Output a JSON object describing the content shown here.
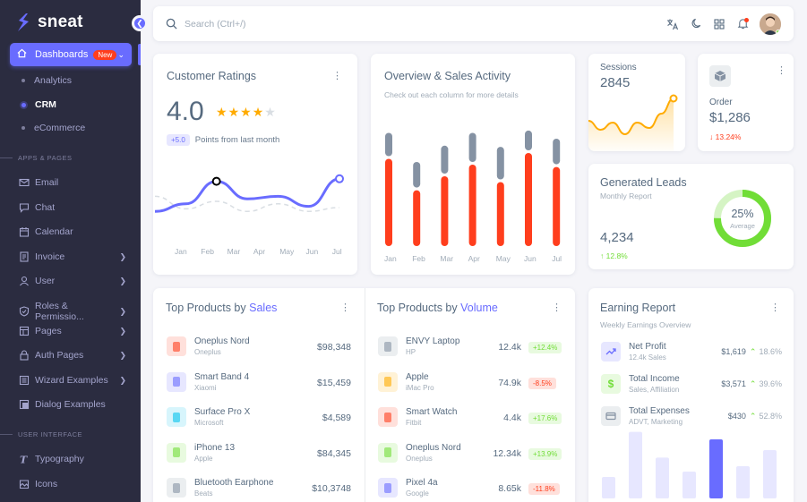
{
  "brand": {
    "name": "sneat"
  },
  "sidebar": {
    "dashboards": {
      "label": "Dashboards",
      "badge": "New"
    },
    "subitems": [
      {
        "label": "Analytics",
        "active": false
      },
      {
        "label": "CRM",
        "active": true
      },
      {
        "label": "eCommerce",
        "active": false
      }
    ],
    "section_apps": "APPS & PAGES",
    "section_ui": "USER INTERFACE",
    "items": [
      {
        "label": "Email",
        "icon": "mail-icon",
        "chevron": false
      },
      {
        "label": "Chat",
        "icon": "chat-icon",
        "chevron": false
      },
      {
        "label": "Calendar",
        "icon": "calendar-icon",
        "chevron": false
      },
      {
        "label": "Invoice",
        "icon": "invoice-icon",
        "chevron": true
      },
      {
        "label": "User",
        "icon": "user-icon",
        "chevron": true
      },
      {
        "label": "Roles & Permissio...",
        "icon": "shield-icon",
        "chevron": true
      },
      {
        "label": "Pages",
        "icon": "pages-icon",
        "chevron": true
      },
      {
        "label": "Auth Pages",
        "icon": "lock-icon",
        "chevron": true
      },
      {
        "label": "Wizard Examples",
        "icon": "wizard-icon",
        "chevron": true
      },
      {
        "label": "Dialog Examples",
        "icon": "dialog-icon",
        "chevron": false
      }
    ],
    "ui_items": [
      {
        "label": "Typography",
        "icon": "typography-icon"
      },
      {
        "label": "Icons",
        "icon": "icons-icon"
      }
    ]
  },
  "search": {
    "placeholder": "Search (Ctrl+/)"
  },
  "ratings": {
    "title": "Customer Ratings",
    "score": "4.0",
    "stars_filled": 4,
    "stars_total": 5,
    "badge": "+5.0",
    "badge_text": "Points from last month",
    "months": [
      "Jan",
      "Feb",
      "Mar",
      "Apr",
      "May",
      "Jun",
      "Jul"
    ]
  },
  "overview": {
    "title": "Overview & Sales Activity",
    "subtitle": "Check out each column for more details",
    "months": [
      "Jan",
      "Feb",
      "Mar",
      "Apr",
      "May",
      "Jun",
      "Jul"
    ]
  },
  "sessions": {
    "title": "Sessions",
    "value": "2845"
  },
  "order": {
    "title": "Order",
    "value": "$1,286",
    "change": "13.24%"
  },
  "leads": {
    "title": "Generated Leads",
    "subtitle": "Monthly Report",
    "value": "4,234",
    "change": "12.8%",
    "donut_pct": "25%",
    "donut_label": "Average",
    "donut_fraction": 0.25
  },
  "top_sales": {
    "title_prefix": "Top Products by",
    "title_accent": "Sales",
    "rows": [
      {
        "name": "Oneplus Nord",
        "brand": "Oneplus",
        "value": "$98,348",
        "bg": "#ffe0db",
        "fg": "#ff3e1d"
      },
      {
        "name": "Smart Band 4",
        "brand": "Xiaomi",
        "value": "$15,459",
        "bg": "#e7e7ff",
        "fg": "#696cff"
      },
      {
        "name": "Surface Pro X",
        "brand": "Microsoft",
        "value": "$4,589",
        "bg": "#d7f5fc",
        "fg": "#03c3ec"
      },
      {
        "name": "iPhone 13",
        "brand": "Apple",
        "value": "$84,345",
        "bg": "#e8fadf",
        "fg": "#71dd37"
      },
      {
        "name": "Bluetooth Earphone",
        "brand": "Beats",
        "value": "$10,3748",
        "bg": "#ebeef0",
        "fg": "#8592a3"
      }
    ]
  },
  "top_volume": {
    "title_prefix": "Top Products by",
    "title_accent": "Volume",
    "rows": [
      {
        "name": "ENVY Laptop",
        "brand": "HP",
        "value": "12.4k",
        "chip": "+12.4%",
        "dir": "up",
        "bg": "#ebeef0",
        "fg": "#8592a3"
      },
      {
        "name": "Apple",
        "brand": "iMac Pro",
        "value": "74.9k",
        "chip": "-8.5%",
        "dir": "down",
        "bg": "#fff2d6",
        "fg": "#ffab00"
      },
      {
        "name": "Smart Watch",
        "brand": "Fitbit",
        "value": "4.4k",
        "chip": "+17.6%",
        "dir": "up",
        "bg": "#ffe0db",
        "fg": "#ff3e1d"
      },
      {
        "name": "Oneplus Nord",
        "brand": "Oneplus",
        "value": "12.34k",
        "chip": "+13.9%",
        "dir": "up",
        "bg": "#e8fadf",
        "fg": "#71dd37"
      },
      {
        "name": "Pixel 4a",
        "brand": "Google",
        "value": "8.65k",
        "chip": "-11.8%",
        "dir": "down",
        "bg": "#e7e7ff",
        "fg": "#696cff"
      }
    ]
  },
  "earning": {
    "title": "Earning Report",
    "subtitle": "Weekly Earnings Overview",
    "rows": [
      {
        "name": "Net Profit",
        "desc": "12.4k Sales",
        "value": "$1,619",
        "pct": "18.6%",
        "icon": "trend-icon",
        "bg": "#e7e7ff",
        "fg": "#696cff"
      },
      {
        "name": "Total Income",
        "desc": "Sales, Affiliation",
        "value": "$3,571",
        "pct": "39.6%",
        "icon": "dollar-icon",
        "bg": "#e8fadf",
        "fg": "#71dd37"
      },
      {
        "name": "Total Expenses",
        "desc": "ADVT, Marketing",
        "value": "$430",
        "pct": "52.8%",
        "icon": "card-icon",
        "bg": "#ebeef0",
        "fg": "#8592a3"
      }
    ]
  },
  "chart_data": [
    {
      "type": "line",
      "title": "Customer Ratings",
      "categories": [
        "Jan",
        "Feb",
        "Mar",
        "Apr",
        "May",
        "Jun",
        "Jul"
      ],
      "series": [
        {
          "values": [
            2.2,
            2.8,
            4.6,
            3.2,
            3.4,
            2.6,
            4.8
          ]
        },
        {
          "values": [
            3.4,
            2.4,
            3.0,
            2.2,
            2.8,
            2.2,
            2.5
          ]
        }
      ],
      "ylim": [
        0,
        6
      ]
    },
    {
      "type": "bar",
      "title": "Overview & Sales Activity",
      "categories": [
        "Jan",
        "Feb",
        "Mar",
        "Apr",
        "May",
        "Jun",
        "Jul"
      ],
      "series": [
        {
          "values": [
            75,
            48,
            60,
            70,
            55,
            80,
            68
          ]
        },
        {
          "values": [
            20,
            22,
            24,
            25,
            28,
            17,
            22
          ]
        }
      ],
      "ylim": [
        0,
        100
      ]
    },
    {
      "type": "area",
      "title": "Sessions",
      "values": [
        30,
        20,
        28,
        15,
        28,
        22,
        38,
        55
      ]
    },
    {
      "type": "bar",
      "title": "Earning Report",
      "values": [
        20,
        62,
        38,
        25,
        55,
        30,
        45
      ],
      "highlight_index": 4
    }
  ],
  "colors": {
    "primary": "#696cff",
    "danger": "#ff3e1d",
    "secondary": "#8592a3",
    "warning": "#ffab00",
    "success": "#71dd37"
  }
}
